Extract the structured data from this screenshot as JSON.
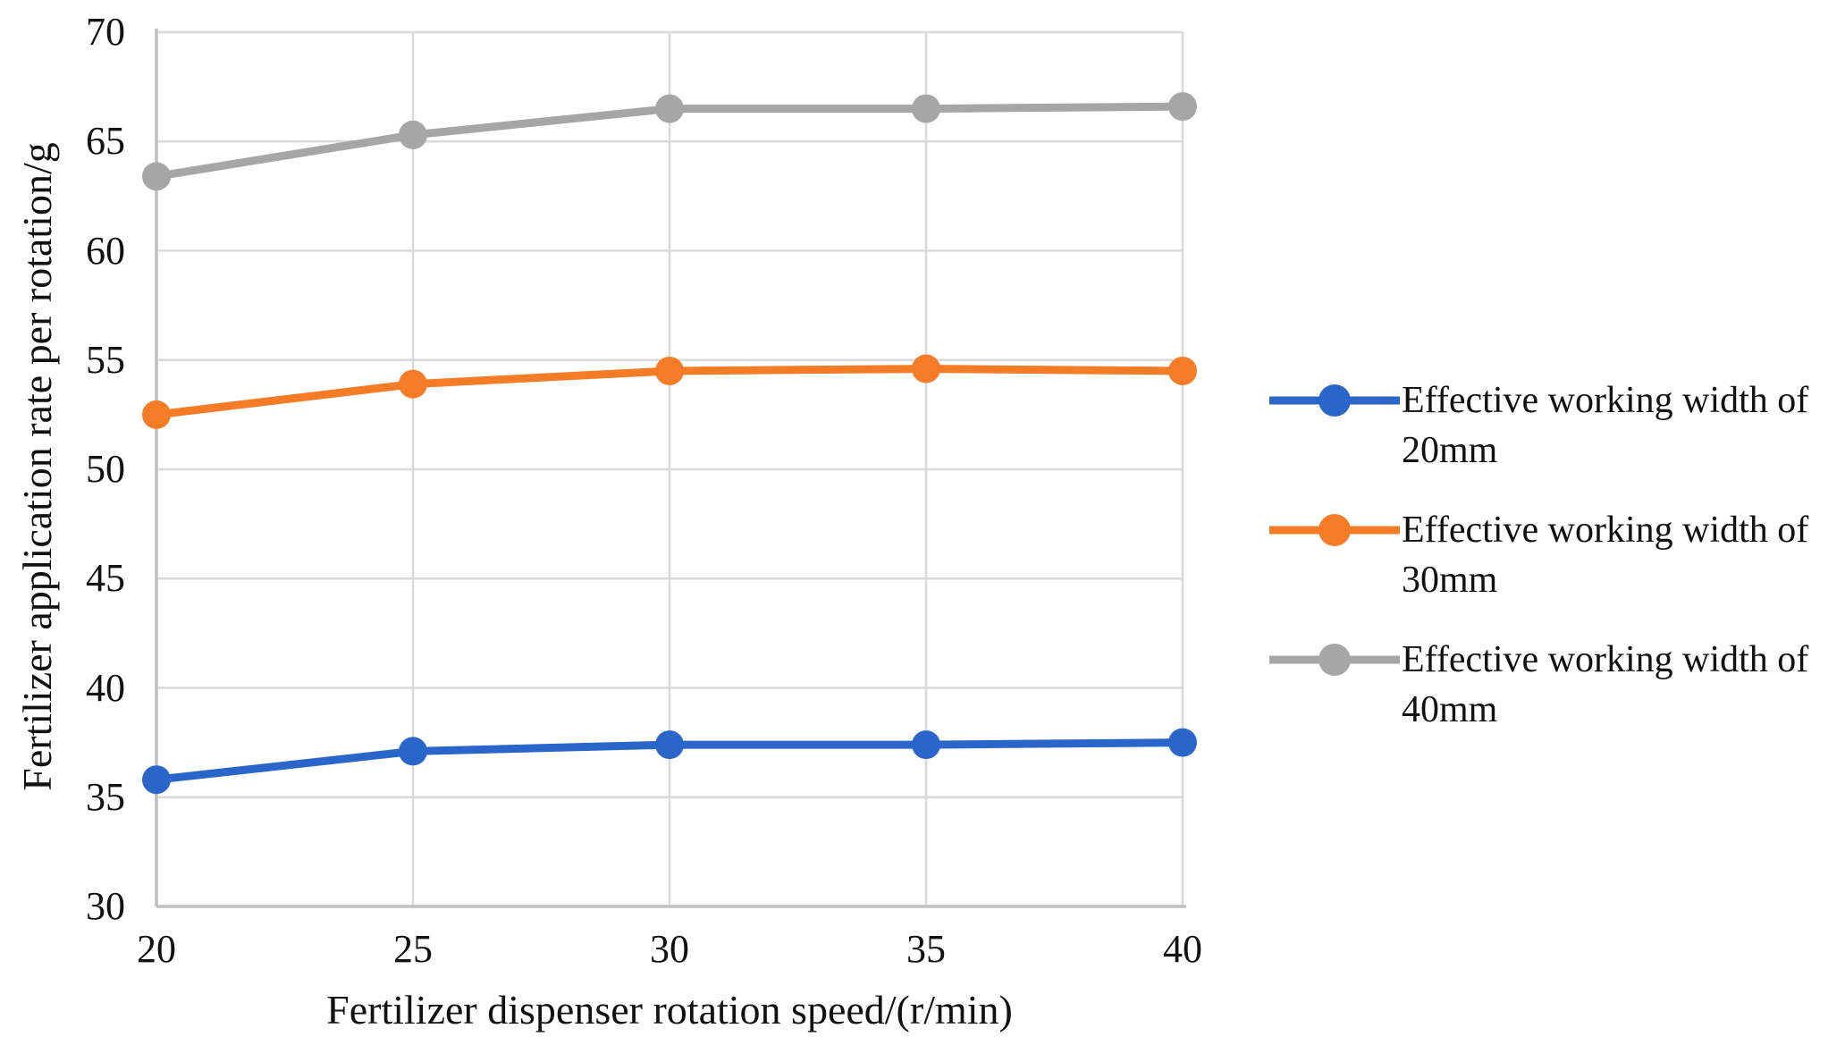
{
  "chart_data": {
    "type": "line",
    "title": "",
    "xlabel": "Fertilizer dispenser rotation speed/(r/min)",
    "ylabel": "Fertilizer application rate per rotation/g",
    "x": [
      20,
      25,
      30,
      35,
      40
    ],
    "x_ticks": [
      20,
      25,
      30,
      35,
      40
    ],
    "y_ticks": [
      30,
      35,
      40,
      45,
      50,
      55,
      60,
      65,
      70
    ],
    "xlim": [
      20,
      40
    ],
    "ylim": [
      30,
      70
    ],
    "grid": true,
    "legend_position": "right",
    "series": [
      {
        "name": "Effective working width of 20mm",
        "legend_line1": "Effective working width of",
        "legend_line2": "20mm",
        "color": "#2A66C9",
        "values": [
          35.8,
          37.1,
          37.4,
          37.4,
          37.5
        ]
      },
      {
        "name": "Effective working width of 30mm",
        "legend_line1": "Effective working width of",
        "legend_line2": "30mm",
        "color": "#F47C27",
        "values": [
          52.5,
          53.9,
          54.5,
          54.6,
          54.5
        ]
      },
      {
        "name": "Effective working width of 40mm",
        "legend_line1": "Effective working width of",
        "legend_line2": "40mm",
        "color": "#A6A6A6",
        "values": [
          63.4,
          65.3,
          66.5,
          66.5,
          66.6
        ]
      }
    ]
  },
  "colors": {
    "background": "#FFFFFF",
    "gridline": "#D9D9D9",
    "axis_line": "#BFBFBF",
    "text": "#111111"
  }
}
